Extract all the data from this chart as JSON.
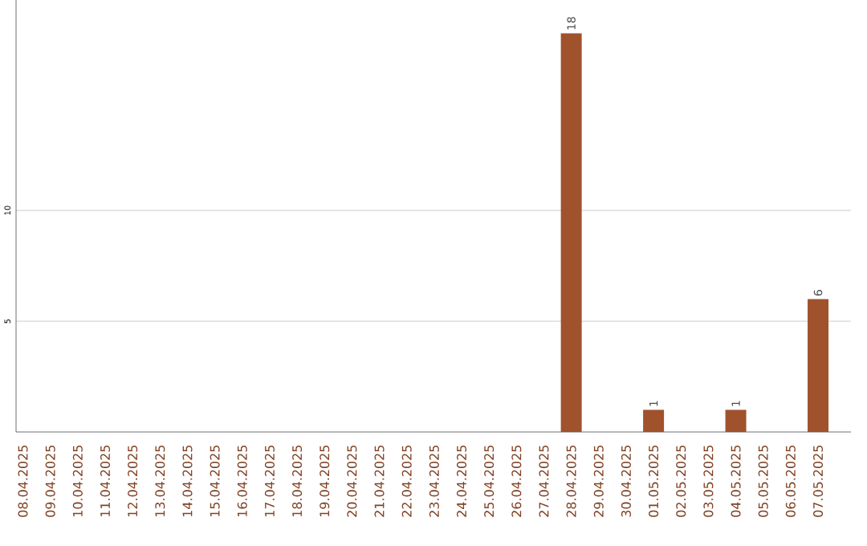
{
  "chart_data": {
    "type": "bar",
    "categories": [
      "08.04.2025",
      "09.04.2025",
      "10.04.2025",
      "11.04.2025",
      "12.04.2025",
      "13.04.2025",
      "14.04.2025",
      "15.04.2025",
      "16.04.2025",
      "17.04.2025",
      "18.04.2025",
      "19.04.2025",
      "20.04.2025",
      "21.04.2025",
      "22.04.2025",
      "23.04.2025",
      "24.04.2025",
      "25.04.2025",
      "26.04.2025",
      "27.04.2025",
      "28.04.2025",
      "29.04.2025",
      "30.04.2025",
      "01.05.2025",
      "02.05.2025",
      "03.05.2025",
      "04.05.2025",
      "05.05.2025",
      "06.05.2025",
      "07.05.2025"
    ],
    "values": [
      0,
      0,
      0,
      0,
      0,
      0,
      0,
      0,
      0,
      0,
      0,
      0,
      0,
      0,
      0,
      0,
      0,
      0,
      0,
      0,
      18,
      0,
      0,
      1,
      0,
      0,
      1,
      0,
      0,
      6
    ],
    "value_labels": [
      null,
      null,
      null,
      null,
      null,
      null,
      null,
      null,
      null,
      null,
      null,
      null,
      null,
      null,
      null,
      null,
      null,
      null,
      null,
      null,
      "18",
      null,
      null,
      "1",
      null,
      null,
      "1",
      null,
      null,
      "6"
    ],
    "color": "#a0522d",
    "ylim": [
      0,
      19.5
    ],
    "yticks": [
      5,
      10
    ],
    "grid": "y"
  }
}
